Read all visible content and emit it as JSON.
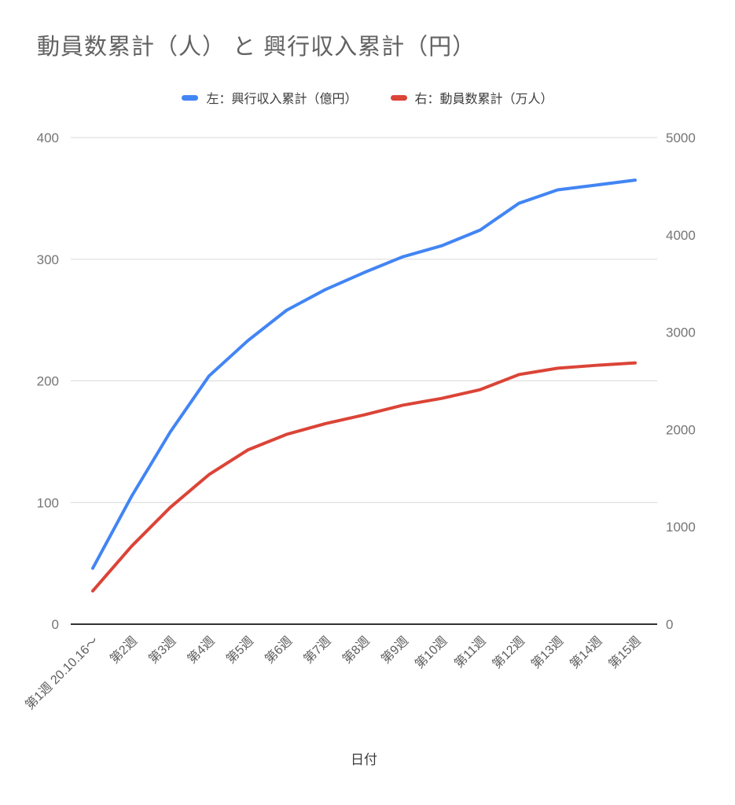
{
  "title": "動員数累計（人） と 興行収入累計（円）",
  "legend": {
    "items": [
      {
        "label": "左：興行収入累計（億円）",
        "color": "#4285f4"
      },
      {
        "label": "右：動員数累計（万人）",
        "color": "#db4437"
      }
    ]
  },
  "x_axis_title": "日付",
  "chart_data": {
    "type": "line",
    "title": "動員数累計（人） と 興行収入累計（円）",
    "xlabel": "日付",
    "categories": [
      "第1週 20.10.16〜",
      "第2週",
      "第3週",
      "第4週",
      "第5週",
      "第6週",
      "第7週",
      "第8週",
      "第9週",
      "第10週",
      "第11週",
      "第12週",
      "第13週",
      "第14週",
      "第15週"
    ],
    "series": [
      {
        "name": "左：興行収入累計（億円）",
        "axis": "left",
        "color": "#4285f4",
        "values": [
          46,
          105,
          158,
          204,
          233,
          258,
          275,
          289,
          302,
          311,
          324,
          346,
          357,
          361,
          365
        ]
      },
      {
        "name": "右：動員数累計（万人）",
        "axis": "right",
        "color": "#db4437",
        "values": [
          342,
          800,
          1200,
          1537,
          1790,
          1950,
          2060,
          2150,
          2250,
          2320,
          2410,
          2565,
          2630,
          2660,
          2685
        ]
      }
    ],
    "left_axis": {
      "min": 0,
      "max": 400,
      "ticks": [
        0,
        100,
        200,
        300,
        400
      ]
    },
    "right_axis": {
      "min": 0,
      "max": 5000,
      "ticks": [
        0,
        1000,
        2000,
        3000,
        4000,
        5000
      ]
    },
    "grid": true,
    "legend_position": "top"
  }
}
